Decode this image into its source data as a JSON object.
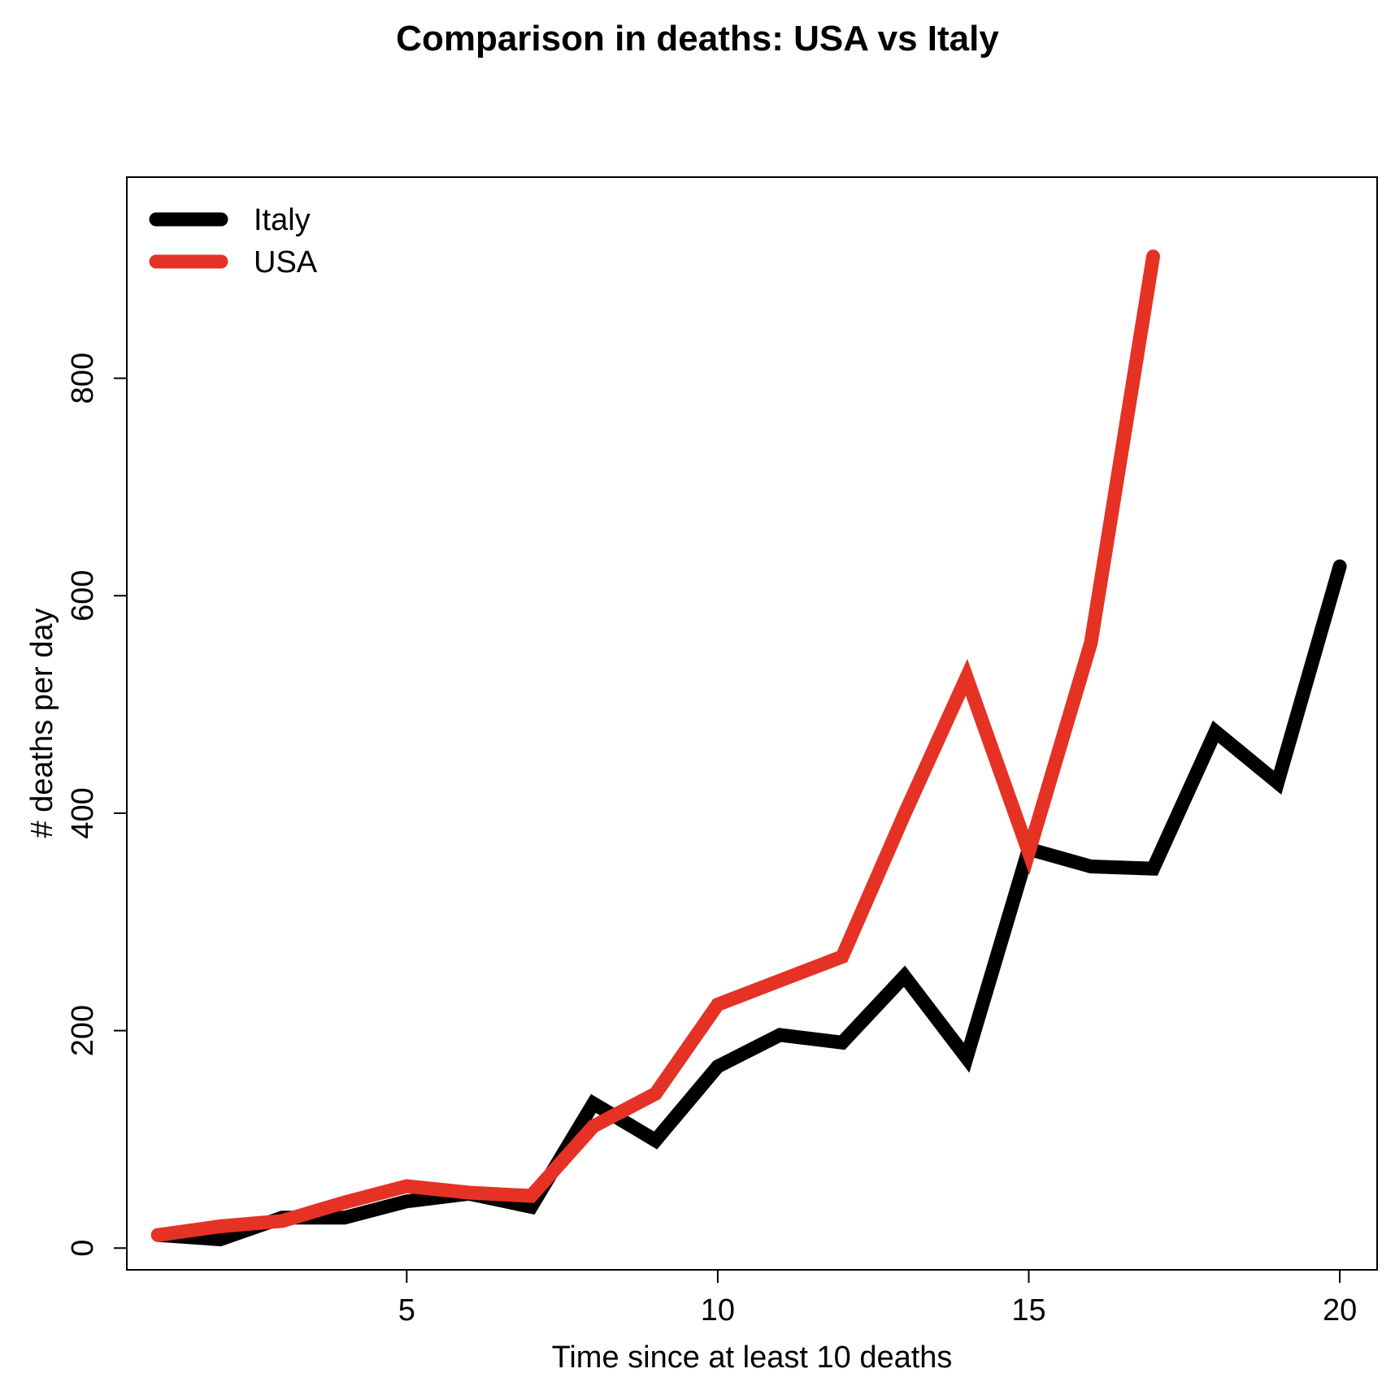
{
  "chart_data": {
    "type": "line",
    "title": "Comparison in deaths: USA vs Italy",
    "xlabel": "Time since at least 10 deaths",
    "ylabel": "# deaths per day",
    "xlim": [
      0.5,
      20.6
    ],
    "ylim": [
      -20,
      985
    ],
    "x_ticks": [
      5,
      10,
      15,
      20
    ],
    "y_ticks": [
      0,
      200,
      400,
      600,
      800
    ],
    "grid": false,
    "legend_position": "top-left",
    "series": [
      {
        "name": "Italy",
        "color": "#000000",
        "x": [
          1,
          2,
          3,
          4,
          5,
          6,
          7,
          8,
          9,
          10,
          11,
          12,
          13,
          14,
          15,
          16,
          17,
          18,
          19,
          20
        ],
        "y": [
          12,
          8,
          28,
          28,
          43,
          50,
          38,
          133,
          99,
          167,
          196,
          189,
          250,
          175,
          367,
          351,
          349,
          475,
          428,
          627
        ]
      },
      {
        "name": "USA",
        "color": "#e53224",
        "x": [
          1,
          2,
          3,
          4,
          5,
          6,
          7,
          8,
          9,
          10,
          11,
          12,
          13,
          14,
          15,
          16,
          17
        ],
        "y": [
          12,
          20,
          25,
          42,
          57,
          51,
          48,
          112,
          142,
          224,
          246,
          268,
          399,
          525,
          364,
          557,
          912
        ]
      }
    ]
  }
}
